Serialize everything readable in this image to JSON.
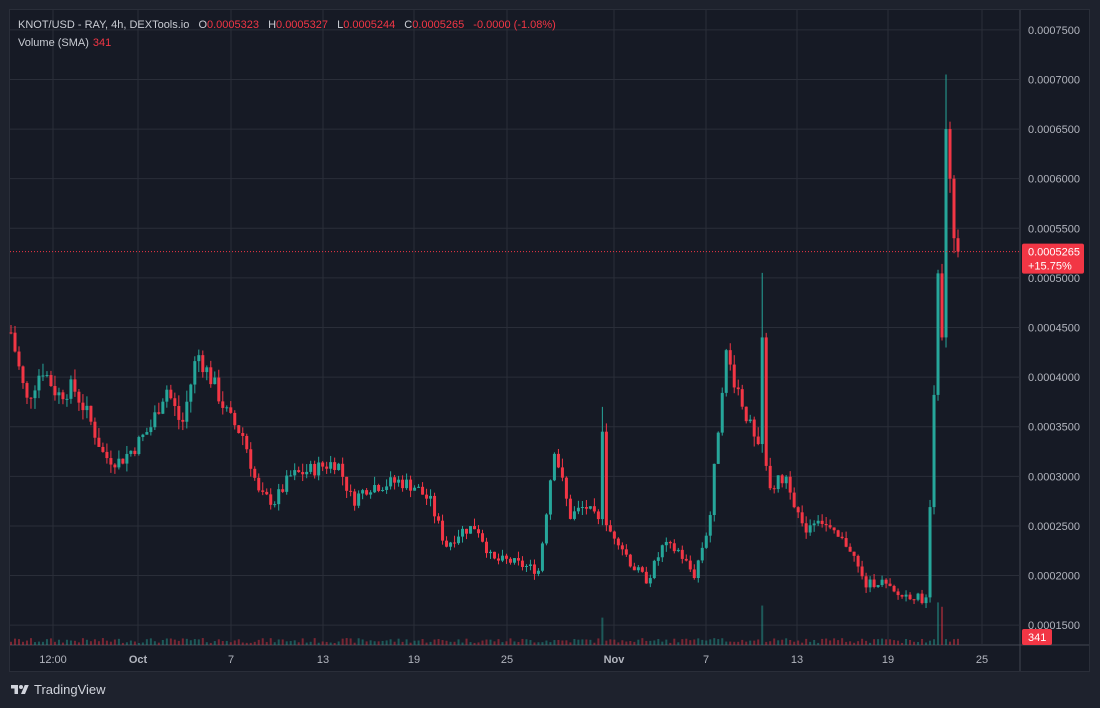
{
  "legend": {
    "symbol": "KNOT/USD - RAY, 4h, DEXTools.io",
    "open_key": "O",
    "open": "0.0005323",
    "high_key": "H",
    "high": "0.0005327",
    "low_key": "L",
    "low": "0.0005244",
    "close_key": "C",
    "close": "0.0005265",
    "change": "-0.0000",
    "change_pct": "(-1.08%)",
    "volume_label": "Volume (SMA)",
    "volume_value": "341"
  },
  "price_badge": {
    "price": "0.0005265",
    "change": "+15.75%"
  },
  "volume_badge": "341",
  "brand": {
    "name": "TradingView"
  },
  "colors": {
    "background": "#1e222d",
    "plot": "#161a25",
    "grid": "#2a2e39",
    "up": "#26a69a",
    "down": "#f23645",
    "axis_text": "#b2b5be"
  },
  "chart_data": {
    "type": "candlestick",
    "y_axis": {
      "min": 0.00013,
      "max": 0.00077,
      "ticks": [
        "0.0001500",
        "0.0002000",
        "0.0002500",
        "0.0003000",
        "0.0003500",
        "0.0004000",
        "0.0004500",
        "0.0005000",
        "0.0005500",
        "0.0006000",
        "0.0006500",
        "0.0007000",
        "0.0007500"
      ]
    },
    "x_axis": {
      "ticks": [
        "12:00",
        "Oct",
        "7",
        "13",
        "19",
        "25",
        "Nov",
        "7",
        "13",
        "19",
        "25"
      ]
    },
    "last_price": 0.0005265,
    "grid": true,
    "series_keypoints": [
      [
        "Sep 25",
        0.000445
      ],
      [
        "Sep 26",
        0.000375
      ],
      [
        "Sep 27",
        0.00041
      ],
      [
        "Sep 28",
        0.000382
      ],
      [
        "Sep 29",
        0.00039
      ],
      [
        "Sep 30",
        0.00036
      ],
      [
        "Oct 1",
        0.00032
      ],
      [
        "Oct 2",
        0.000315
      ],
      [
        "Oct 3",
        0.00033
      ],
      [
        "Oct 4",
        0.00035
      ],
      [
        "Oct 5",
        0.00039
      ],
      [
        "Oct 6",
        0.00035
      ],
      [
        "Oct 7",
        0.000425
      ],
      [
        "Oct 8",
        0.000395
      ],
      [
        "Oct 9",
        0.00036
      ],
      [
        "Oct 10",
        0.00034
      ],
      [
        "Oct 11",
        0.00028
      ],
      [
        "Oct 12",
        0.000275
      ],
      [
        "Oct 13",
        0.0003
      ],
      [
        "Oct 14",
        0.000305
      ],
      [
        "Oct 15",
        0.00031
      ],
      [
        "Oct 16",
        0.000315
      ],
      [
        "Oct 17",
        0.000275
      ],
      [
        "Oct 18",
        0.00029
      ],
      [
        "Oct 19",
        0.000292
      ],
      [
        "Oct 20",
        0.000295
      ],
      [
        "Oct 21",
        0.00029
      ],
      [
        "Oct 22",
        0.000275
      ],
      [
        "Oct 23",
        0.00023
      ],
      [
        "Oct 24",
        0.000245
      ],
      [
        "Oct 25",
        0.00025
      ],
      [
        "Oct 26",
        0.000215
      ],
      [
        "Oct 27",
        0.000215
      ],
      [
        "Oct 28",
        0.00021
      ],
      [
        "Oct 29",
        0.000205
      ],
      [
        "Oct 30",
        0.00033
      ],
      [
        "Oct 31",
        0.00026
      ],
      [
        "Nov 1",
        0.00027
      ],
      [
        "Nov 2",
        0.00025
      ],
      [
        "Nov 3",
        0.00024
      ],
      [
        "Nov 4",
        0.00021
      ],
      [
        "Nov 5",
        0.000195
      ],
      [
        "Nov 6",
        0.00023
      ],
      [
        "Nov 7",
        0.000225
      ],
      [
        "Nov 8",
        0.0002
      ],
      [
        "Nov 9",
        0.000255
      ],
      [
        "Nov 10",
        0.000425
      ],
      [
        "Nov 11",
        0.00038
      ],
      [
        "Nov 12",
        0.00033
      ],
      [
        "Nov 13",
        0.00029
      ],
      [
        "Nov 14",
        0.0003
      ],
      [
        "Nov 15",
        0.000245
      ],
      [
        "Nov 16",
        0.00026
      ],
      [
        "Nov 17",
        0.00024
      ],
      [
        "Nov 18",
        0.00023
      ],
      [
        "Nov 19",
        0.00019
      ],
      [
        "Nov 20",
        0.000195
      ],
      [
        "Nov 21",
        0.00018
      ],
      [
        "Nov 22",
        0.00018
      ],
      [
        "Nov 23",
        0.000175
      ],
      [
        "Nov 23.5",
        0.00065
      ],
      [
        "Nov 24",
        0.000527
      ]
    ],
    "volume_spikes": [
      "Oct 30",
      "Nov 10",
      "Nov 23"
    ]
  }
}
